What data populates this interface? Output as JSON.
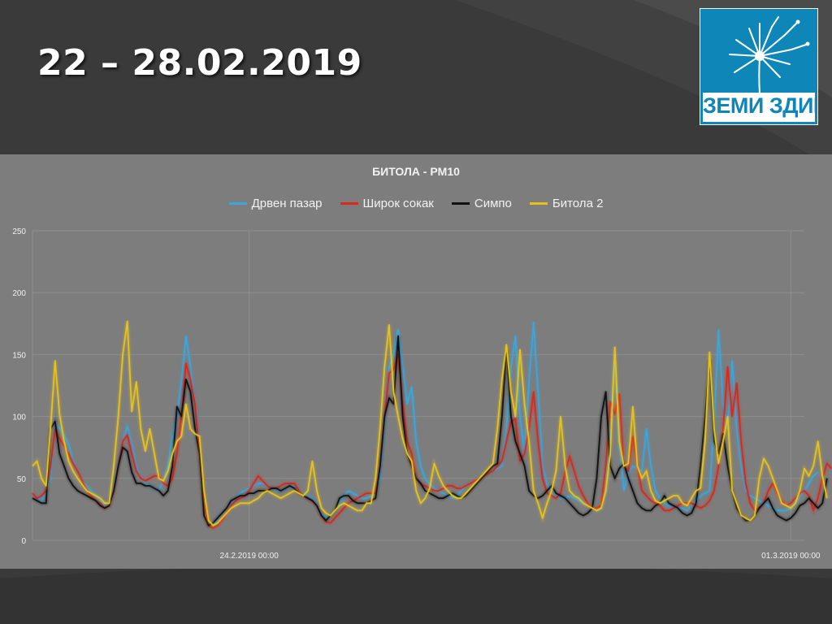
{
  "slide": {
    "title": "22 – 28.02.2019",
    "logo": {
      "text": "ЗЕМИ ЗДИВ",
      "icon": "dandelion-icon",
      "bg_color": "#0e86b8"
    }
  },
  "colors": {
    "background": "#3a3a3a",
    "plot_bg": "#7d7d7d",
    "gridline": "#8e8e8e"
  },
  "chart_data": {
    "type": "line",
    "title": "БИТОЛА - PM10",
    "legend_position": "top",
    "grid": true,
    "ylim": [
      0,
      250
    ],
    "yticks": [
      0,
      50,
      100,
      150,
      200,
      250
    ],
    "x_tick_labels": [
      {
        "at": 48,
        "label": "24.2.2019 00:00"
      },
      {
        "at": 168,
        "label": "01.3.2019 00:00"
      }
    ],
    "x_count": 172,
    "series": [
      {
        "name": "Дрвен пазар",
        "color": "#3aa6dd",
        "values": [
          38,
          34,
          32,
          38,
          50,
          95,
          90,
          85,
          78,
          64,
          56,
          48,
          44,
          40,
          36,
          32,
          28,
          30,
          45,
          62,
          80,
          92,
          78,
          60,
          50,
          46,
          44,
          42,
          40,
          48,
          60,
          84,
          100,
          128,
          165,
          140,
          110,
          75,
          30,
          15,
          12,
          16,
          22,
          26,
          30,
          34,
          38,
          40,
          42,
          44,
          46,
          46,
          44,
          42,
          40,
          40,
          42,
          44,
          44,
          40,
          38,
          36,
          34,
          30,
          22,
          18,
          20,
          24,
          30,
          36,
          40,
          38,
          36,
          34,
          34,
          36,
          38,
          50,
          90,
          140,
          150,
          170,
          140,
          110,
          124,
          80,
          60,
          50,
          45,
          42,
          40,
          38,
          36,
          34,
          36,
          40,
          44,
          46,
          48,
          50,
          52,
          54,
          56,
          58,
          60,
          90,
          140,
          165,
          100,
          70,
          128,
          176,
          120,
          60,
          45,
          38,
          36,
          34,
          34,
          36,
          34,
          32,
          30,
          28,
          26,
          24,
          26,
          40,
          92,
          145,
          80,
          40,
          54,
          60,
          58,
          56,
          90,
          60,
          40,
          34,
          30,
          28,
          26,
          26,
          26,
          24,
          28,
          32,
          36,
          38,
          40,
          95,
          170,
          110,
          90,
          145,
          90,
          60,
          40,
          36,
          34,
          32,
          30,
          28,
          26,
          24,
          24,
          24,
          26,
          30,
          35,
          40,
          46,
          52,
          55
        ]
      },
      {
        "name": "Широк сокак",
        "color": "#d62a1f",
        "values": [
          38,
          34,
          36,
          40,
          60,
          90,
          82,
          76,
          70,
          62,
          56,
          48,
          40,
          36,
          32,
          30,
          26,
          28,
          40,
          60,
          80,
          85,
          70,
          56,
          50,
          48,
          50,
          52,
          52,
          46,
          44,
          50,
          70,
          100,
          143,
          130,
          110,
          70,
          30,
          12,
          10,
          12,
          16,
          22,
          28,
          32,
          34,
          36,
          40,
          46,
          52,
          48,
          44,
          42,
          42,
          44,
          46,
          46,
          46,
          40,
          36,
          34,
          32,
          28,
          20,
          15,
          14,
          18,
          22,
          26,
          30,
          32,
          34,
          36,
          38,
          38,
          38,
          60,
          100,
          135,
          138,
          150,
          110,
          80,
          70,
          50,
          45,
          44,
          42,
          40,
          40,
          42,
          44,
          44,
          42,
          42,
          44,
          46,
          48,
          50,
          52,
          54,
          56,
          60,
          64,
          80,
          96,
          98,
          64,
          70,
          90,
          120,
          80,
          50,
          38,
          36,
          34,
          38,
          55,
          68,
          56,
          44,
          36,
          30,
          26,
          26,
          28,
          60,
          112,
          102,
          118,
          60,
          56,
          84,
          60,
          40,
          36,
          32,
          30,
          28,
          24,
          24,
          26,
          28,
          30,
          30,
          30,
          28,
          26,
          28,
          32,
          40,
          60,
          90,
          140,
          100,
          127,
          80,
          46,
          30,
          24,
          26,
          30,
          40,
          46,
          38,
          32,
          28,
          30,
          34,
          38,
          40,
          36,
          24,
          34,
          50,
          62,
          58
        ]
      },
      {
        "name": "Симпо",
        "color": "#111111",
        "values": [
          34,
          32,
          30,
          30,
          90,
          96,
          70,
          60,
          50,
          44,
          40,
          38,
          36,
          34,
          32,
          28,
          26,
          28,
          40,
          60,
          75,
          72,
          55,
          46,
          46,
          44,
          44,
          42,
          40,
          36,
          40,
          60,
          108,
          100,
          130,
          120,
          90,
          70,
          20,
          12,
          14,
          18,
          22,
          26,
          32,
          34,
          36,
          36,
          38,
          38,
          40,
          40,
          40,
          42,
          42,
          40,
          42,
          44,
          42,
          38,
          36,
          34,
          32,
          28,
          20,
          16,
          20,
          24,
          34,
          36,
          36,
          32,
          30,
          30,
          30,
          32,
          34,
          60,
          100,
          115,
          110,
          165,
          100,
          70,
          60,
          50,
          46,
          40,
          38,
          36,
          34,
          34,
          36,
          38,
          36,
          34,
          36,
          40,
          44,
          48,
          52,
          56,
          60,
          62,
          100,
          154,
          100,
          80,
          70,
          60,
          40,
          36,
          34,
          36,
          40,
          44,
          38,
          36,
          34,
          30,
          26,
          22,
          20,
          22,
          26,
          50,
          100,
          120,
          60,
          50,
          58,
          62,
          50,
          40,
          30,
          26,
          24,
          24,
          28,
          30,
          36,
          30,
          28,
          26,
          22,
          20,
          22,
          30,
          60,
          100,
          146,
          80,
          70,
          86,
          60,
          40,
          26,
          20,
          16,
          16,
          20,
          26,
          30,
          34,
          26,
          20,
          18,
          16,
          18,
          22,
          28,
          30,
          34,
          30,
          26,
          30,
          50
        ]
      },
      {
        "name": "Битола 2",
        "color": "#e6c21c",
        "values": [
          60,
          64,
          50,
          44,
          90,
          145,
          102,
          80,
          64,
          56,
          50,
          45,
          40,
          38,
          36,
          34,
          30,
          30,
          60,
          100,
          150,
          177,
          104,
          128,
          90,
          72,
          90,
          70,
          50,
          48,
          56,
          70,
          80,
          84,
          110,
          90,
          86,
          84,
          40,
          16,
          12,
          14,
          18,
          22,
          26,
          28,
          30,
          30,
          30,
          32,
          34,
          38,
          40,
          38,
          36,
          34,
          36,
          38,
          40,
          38,
          36,
          40,
          64,
          40,
          26,
          22,
          20,
          24,
          28,
          30,
          28,
          26,
          24,
          24,
          30,
          30,
          50,
          90,
          140,
          174,
          120,
          100,
          82,
          70,
          64,
          40,
          30,
          34,
          42,
          62,
          52,
          44,
          40,
          36,
          34,
          34,
          38,
          42,
          46,
          50,
          54,
          58,
          62,
          90,
          130,
          158,
          120,
          100,
          154,
          110,
          80,
          40,
          30,
          18,
          30,
          40,
          56,
          100,
          60,
          40,
          36,
          34,
          30,
          28,
          26,
          24,
          26,
          40,
          70,
          156,
          80,
          60,
          62,
          108,
          60,
          50,
          56,
          40,
          32,
          30,
          32,
          34,
          36,
          36,
          30,
          28,
          34,
          40,
          42,
          80,
          152,
          90,
          62,
          80,
          100,
          40,
          30,
          20,
          18,
          16,
          20,
          50,
          66,
          60,
          50,
          40,
          30,
          28,
          26,
          30,
          40,
          58,
          52,
          60,
          80,
          52,
          34
        ]
      }
    ]
  }
}
